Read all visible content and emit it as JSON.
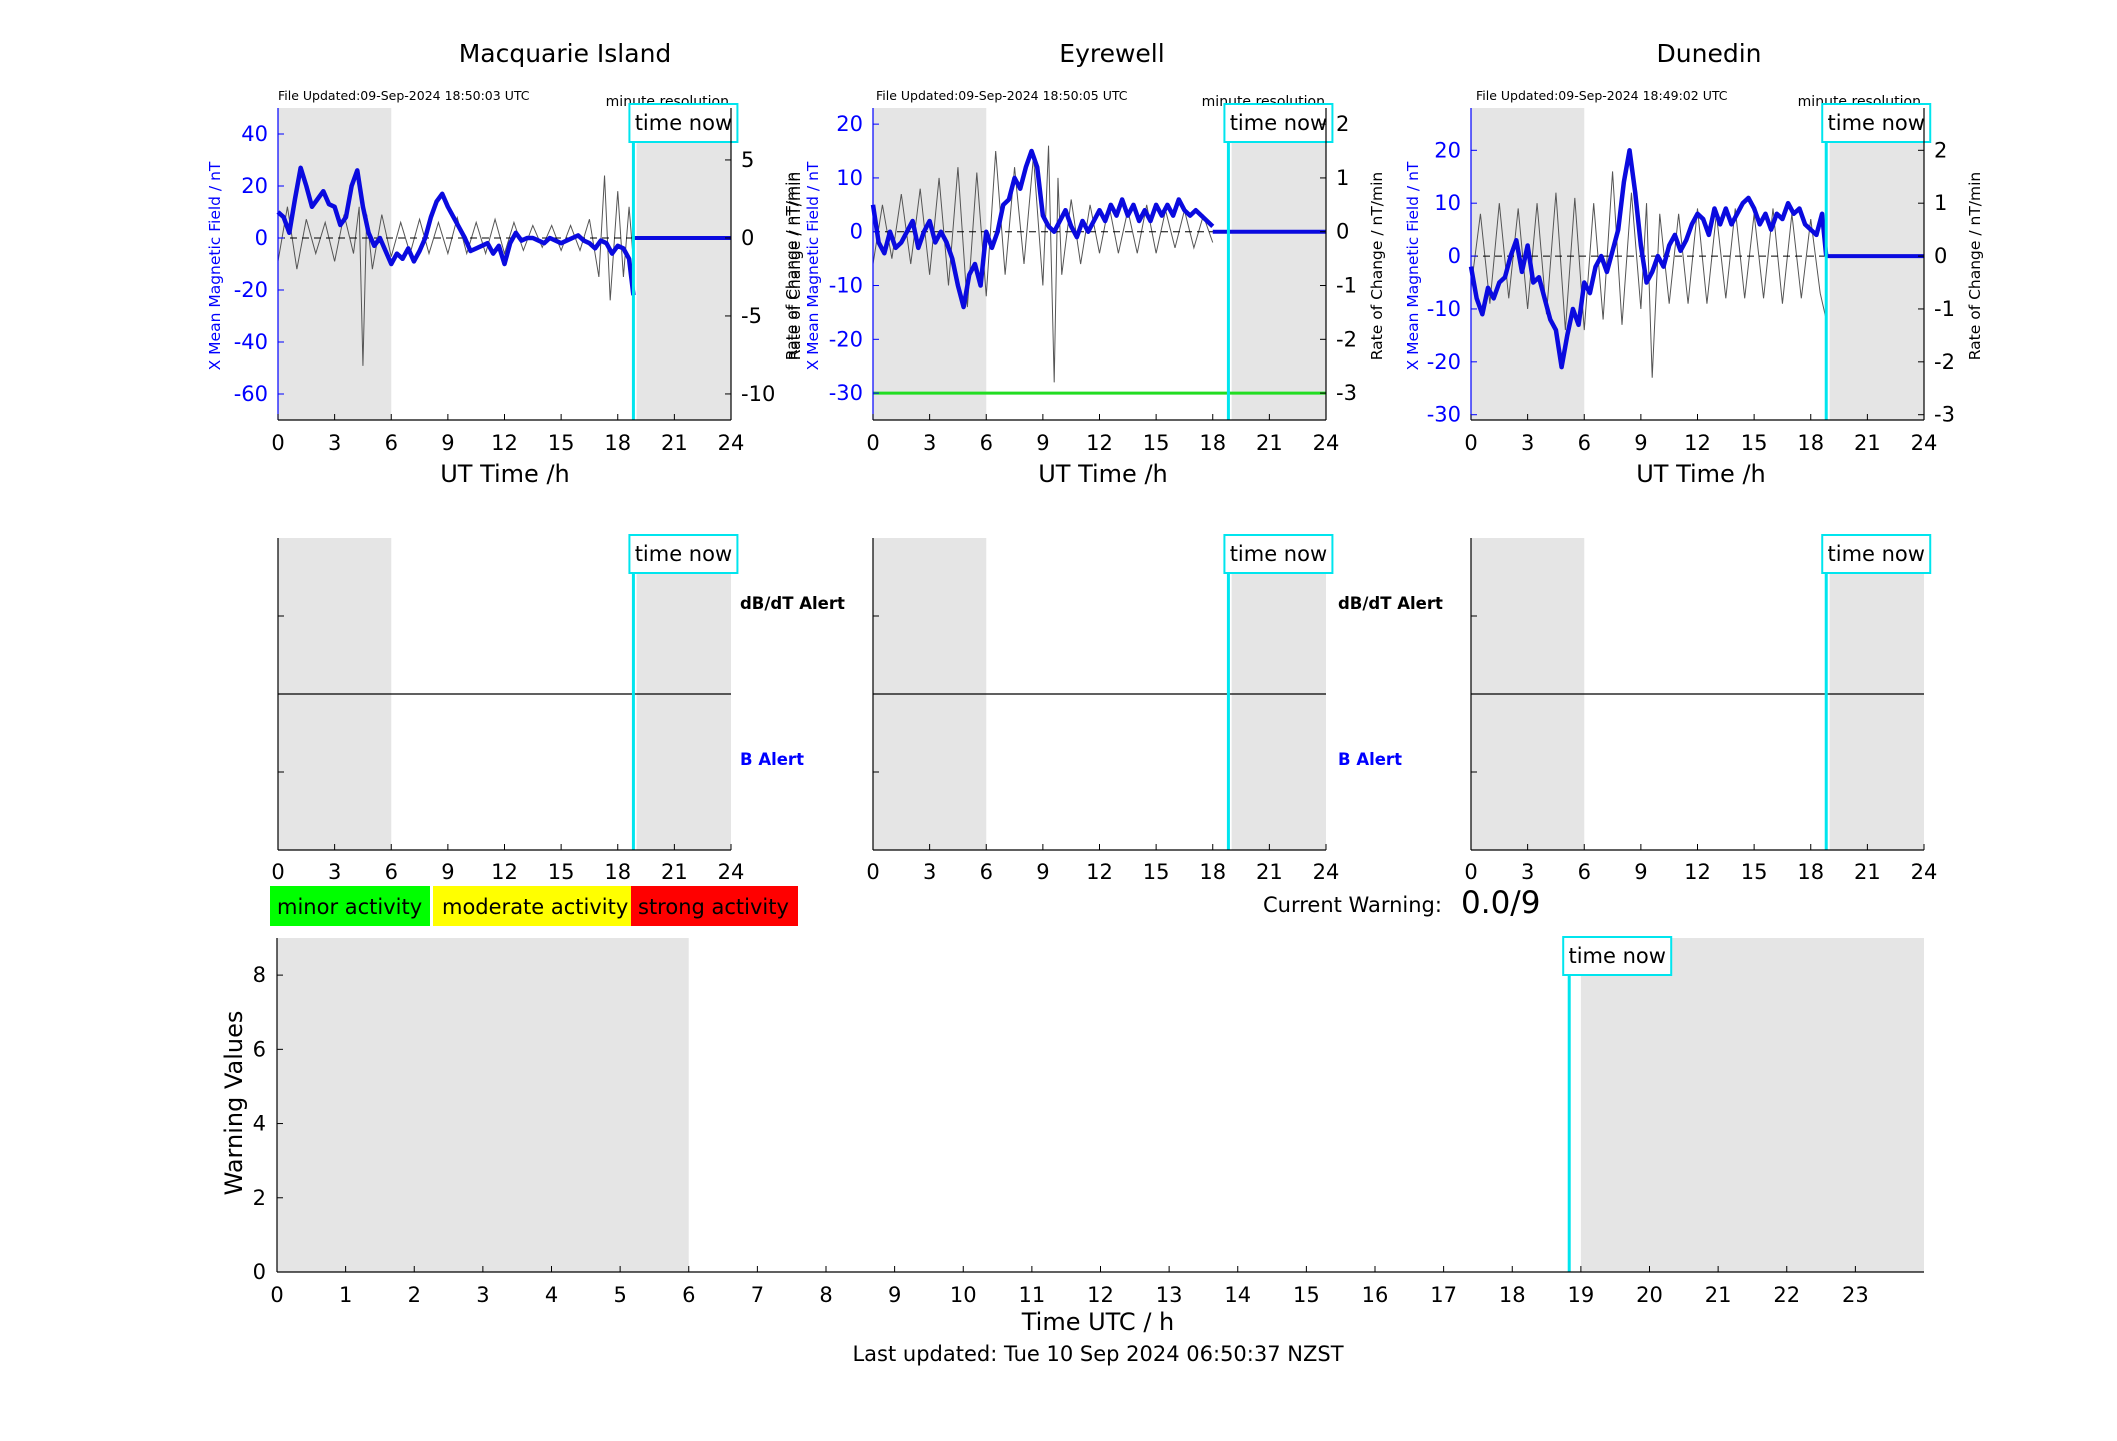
{
  "labels": {
    "time_now": "time now",
    "minute_resolution": "minute resolution",
    "x_axis_ut": "UT Time /h",
    "y_left_label": "X Mean Magnetic Field / nT",
    "y_right_label": "Rate of Change / nT/min",
    "dbdt_alert": "dB/dT Alert",
    "b_alert": "B Alert",
    "current_warning_label": "Current Warning:",
    "current_warning_value": "0.0/9",
    "legend_minor": "minor activity",
    "legend_moderate": "moderate activity",
    "legend_strong": "strong activity",
    "warning_ylabel": "Warning Values",
    "warning_xlabel": "Time UTC / h",
    "last_updated": "Last updated: Tue 10 Sep 2024 06:50:37 NZST"
  },
  "colors": {
    "field_line": "#0a0adf",
    "rate_line": "#555555",
    "time_now": "#00e5ee",
    "shading": "#e5e5e5",
    "threshold": "#22dd22",
    "minor": "#00ff00",
    "moderate": "#ffff00",
    "strong": "#ff0000",
    "b_alert_text": "#0000ff"
  },
  "chart_data": [
    {
      "type": "line",
      "title": "Macquarie Island",
      "file_updated": "File Updated:09-Sep-2024 18:50:03 UTC",
      "xlabel": "UT Time /h",
      "ylabel_left": "X Mean Magnetic Field / nT",
      "ylabel_right": "Rate of Change / nT/min",
      "xlim": [
        0,
        24
      ],
      "x_ticks": [
        0,
        3,
        6,
        9,
        12,
        15,
        18,
        21,
        24
      ],
      "ylim_left": [
        -70,
        50
      ],
      "y_ticks_left": [
        -60,
        -40,
        -20,
        0,
        20,
        40
      ],
      "ylim_right": [
        -11.67,
        8.33
      ],
      "y_ticks_right": [
        -10,
        -5,
        0,
        5
      ],
      "shaded_x": [
        [
          0,
          6
        ],
        [
          19,
          24
        ]
      ],
      "time_now": 18.83,
      "series": [
        {
          "name": "X Mean Magnetic Field",
          "x": [
            0,
            0.3,
            0.6,
            0.9,
            1.2,
            1.5,
            1.8,
            2.1,
            2.4,
            2.7,
            3.0,
            3.3,
            3.6,
            3.9,
            4.2,
            4.5,
            4.8,
            5.1,
            5.4,
            5.7,
            6.0,
            6.3,
            6.6,
            6.9,
            7.2,
            7.5,
            7.8,
            8.1,
            8.4,
            8.7,
            9.0,
            9.3,
            9.6,
            9.9,
            10.2,
            10.5,
            10.8,
            11.1,
            11.4,
            11.7,
            12.0,
            12.3,
            12.6,
            12.9,
            13.2,
            13.5,
            13.8,
            14.1,
            14.4,
            14.7,
            15.0,
            15.3,
            15.6,
            15.9,
            16.2,
            16.5,
            16.8,
            17.1,
            17.4,
            17.7,
            18.0,
            18.3,
            18.6,
            18.83
          ],
          "y": [
            10,
            8,
            2,
            15,
            27,
            20,
            12,
            15,
            18,
            13,
            12,
            5,
            8,
            20,
            26,
            12,
            2,
            -3,
            0,
            -5,
            -10,
            -6,
            -8,
            -4,
            -9,
            -5,
            0,
            8,
            14,
            17,
            12,
            8,
            4,
            0,
            -5,
            -4,
            -3,
            -2,
            -6,
            -3,
            -10,
            -2,
            2,
            -1,
            0,
            0,
            -1,
            -2,
            0,
            -1,
            -2,
            -1,
            0,
            1,
            -1,
            -2,
            -4,
            -1,
            -2,
            -6,
            -3,
            -4,
            -8,
            -22
          ]
        },
        {
          "name": "X Mean Magnetic Field (projected)",
          "x": [
            18.83,
            24
          ],
          "y": [
            0,
            0
          ]
        },
        {
          "name": "Rate of Change",
          "x": [
            0,
            0.5,
            1,
            1.5,
            2,
            2.5,
            3,
            3.5,
            4,
            4.3,
            4.5,
            4.7,
            5,
            5.5,
            6,
            6.5,
            7,
            7.5,
            8,
            8.5,
            9,
            9.5,
            10,
            10.5,
            11,
            11.5,
            12,
            12.5,
            13,
            13.5,
            14,
            14.5,
            15,
            15.5,
            16,
            16.5,
            17,
            17.3,
            17.6,
            18,
            18.3,
            18.6,
            18.83
          ],
          "y": [
            -1.5,
            2,
            -2,
            1.2,
            -1,
            1,
            -1.5,
            1.5,
            -1,
            2,
            -8.2,
            1.5,
            -2,
            1.5,
            -1.2,
            1,
            -1,
            1.2,
            -1,
            1,
            -1,
            1.3,
            -1,
            1,
            -1,
            1.2,
            -1,
            1,
            -0.8,
            0.8,
            -0.6,
            0.8,
            -0.8,
            0.8,
            -0.8,
            1.2,
            -2.5,
            4,
            -4,
            3,
            -2.5,
            2,
            -1.5
          ]
        }
      ]
    },
    {
      "type": "line",
      "title": "Eyrewell",
      "file_updated": "File Updated:09-Sep-2024 18:50:05 UTC",
      "xlabel": "UT Time /h",
      "ylabel_left": "X Mean Magnetic Field / nT",
      "ylabel_right": "Rate of Change / nT/min",
      "xlim": [
        0,
        24
      ],
      "x_ticks": [
        0,
        3,
        6,
        9,
        12,
        15,
        18,
        21,
        24
      ],
      "ylim_left": [
        -35,
        23
      ],
      "y_ticks_left": [
        -30,
        -20,
        -10,
        0,
        10,
        20
      ],
      "ylim_right": [
        -3.5,
        2.3
      ],
      "y_ticks_right": [
        -3,
        -2,
        -1,
        0,
        1,
        2
      ],
      "shaded_x": [
        [
          0,
          6
        ],
        [
          19,
          24
        ]
      ],
      "time_now": 18.83,
      "threshold_y_right": -3,
      "series": [
        {
          "name": "X Mean Magnetic Field",
          "x": [
            0,
            0.3,
            0.6,
            0.9,
            1.2,
            1.5,
            1.8,
            2.1,
            2.4,
            2.7,
            3.0,
            3.3,
            3.6,
            3.9,
            4.2,
            4.5,
            4.8,
            5.1,
            5.4,
            5.7,
            6.0,
            6.3,
            6.6,
            6.9,
            7.2,
            7.5,
            7.8,
            8.1,
            8.4,
            8.7,
            9.0,
            9.3,
            9.6,
            9.9,
            10.2,
            10.5,
            10.8,
            11.1,
            11.4,
            11.7,
            12.0,
            12.3,
            12.6,
            12.9,
            13.2,
            13.5,
            13.8,
            14.1,
            14.4,
            14.7,
            15.0,
            15.3,
            15.6,
            15.9,
            16.2,
            16.5,
            16.8,
            17.1,
            17.4,
            17.7,
            18.0
          ],
          "y": [
            5,
            -2,
            -4,
            0,
            -3,
            -2,
            0,
            2,
            -3,
            0,
            2,
            -2,
            0,
            -2,
            -5,
            -10,
            -14,
            -8,
            -6,
            -10,
            0,
            -3,
            0,
            5,
            6,
            10,
            8,
            12,
            15,
            12,
            3,
            1,
            0,
            2,
            4,
            1,
            -1,
            2,
            0,
            2,
            4,
            2,
            5,
            3,
            6,
            3,
            5,
            2,
            4,
            2,
            5,
            3,
            5,
            3,
            6,
            4,
            3,
            4,
            3,
            2,
            1
          ]
        },
        {
          "name": "X Mean Magnetic Field (projected)",
          "x": [
            18.0,
            24
          ],
          "y": [
            0,
            0
          ]
        },
        {
          "name": "Rate of Change",
          "x": [
            0,
            0.5,
            1,
            1.5,
            2,
            2.5,
            3,
            3.5,
            4,
            4.5,
            5,
            5.5,
            6,
            6.5,
            7,
            7.5,
            8,
            8.5,
            9,
            9.3,
            9.6,
            9.8,
            10,
            10.5,
            11,
            11.5,
            12,
            12.5,
            13,
            13.5,
            14,
            14.5,
            15,
            15.5,
            16,
            16.5,
            17,
            17.5,
            18
          ],
          "y": [
            -0.6,
            0.5,
            -0.5,
            0.7,
            -0.6,
            0.8,
            -0.8,
            1,
            -1,
            1.2,
            -1.4,
            1.1,
            -1.2,
            1.5,
            -0.8,
            1.2,
            -0.6,
            1.4,
            -1,
            1.6,
            -2.8,
            1,
            -0.8,
            0.6,
            -0.6,
            0.5,
            -0.4,
            0.5,
            -0.4,
            0.4,
            -0.4,
            0.5,
            -0.4,
            0.4,
            -0.3,
            0.4,
            -0.3,
            0.3,
            -0.2
          ]
        }
      ]
    },
    {
      "type": "line",
      "title": "Dunedin",
      "file_updated": "File Updated:09-Sep-2024 18:49:02 UTC",
      "xlabel": "UT Time /h",
      "ylabel_left": "X Mean Magnetic Field / nT",
      "ylabel_right": "Rate of Change / nT/min",
      "xlim": [
        0,
        24
      ],
      "x_ticks": [
        0,
        3,
        6,
        9,
        12,
        15,
        18,
        21,
        24
      ],
      "ylim_left": [
        -31,
        28
      ],
      "y_ticks_left": [
        -30,
        -20,
        -10,
        0,
        10,
        20
      ],
      "ylim_right": [
        -3.1,
        2.8
      ],
      "y_ticks_right": [
        -3,
        -2,
        -1,
        0,
        1,
        2
      ],
      "shaded_x": [
        [
          0,
          6
        ],
        [
          19,
          24
        ]
      ],
      "time_now": 18.82,
      "series": [
        {
          "name": "X Mean Magnetic Field",
          "x": [
            0,
            0.3,
            0.6,
            0.9,
            1.2,
            1.5,
            1.8,
            2.1,
            2.4,
            2.7,
            3.0,
            3.3,
            3.6,
            3.9,
            4.2,
            4.5,
            4.8,
            5.1,
            5.4,
            5.7,
            6.0,
            6.3,
            6.6,
            6.9,
            7.2,
            7.5,
            7.8,
            8.1,
            8.4,
            8.7,
            9.0,
            9.3,
            9.6,
            9.9,
            10.2,
            10.5,
            10.8,
            11.1,
            11.4,
            11.7,
            12.0,
            12.3,
            12.6,
            12.9,
            13.2,
            13.5,
            13.8,
            14.1,
            14.4,
            14.7,
            15.0,
            15.3,
            15.6,
            15.9,
            16.2,
            16.5,
            16.8,
            17.1,
            17.4,
            17.7,
            18.0,
            18.3,
            18.6,
            18.82
          ],
          "y": [
            -2,
            -8,
            -11,
            -6,
            -8,
            -5,
            -4,
            0,
            3,
            -3,
            2,
            -5,
            -4,
            -8,
            -12,
            -14,
            -21,
            -15,
            -10,
            -13,
            -5,
            -7,
            -2,
            0,
            -3,
            1,
            5,
            14,
            20,
            12,
            2,
            -5,
            -3,
            0,
            -2,
            2,
            4,
            1,
            3,
            6,
            8,
            7,
            4,
            9,
            6,
            9,
            6,
            8,
            10,
            11,
            9,
            6,
            8,
            5,
            8,
            7,
            10,
            8,
            9,
            6,
            5,
            4,
            8,
            0
          ]
        },
        {
          "name": "X Mean Magnetic Field (projected)",
          "x": [
            18.82,
            24
          ],
          "y": [
            0,
            0
          ]
        },
        {
          "name": "Rate of Change",
          "x": [
            0,
            0.5,
            1,
            1.5,
            2,
            2.5,
            3,
            3.5,
            4,
            4.5,
            5,
            5.5,
            6,
            6.5,
            7,
            7.5,
            8,
            8.5,
            9,
            9.3,
            9.6,
            10,
            10.5,
            11,
            11.5,
            12,
            12.5,
            13,
            13.5,
            14,
            14.5,
            15,
            15.5,
            16,
            16.5,
            17,
            17.5,
            18,
            18.5,
            18.82
          ],
          "y": [
            -0.6,
            0.8,
            -0.9,
            1,
            -0.8,
            0.9,
            -1,
            1,
            -1.1,
            1.2,
            -1.4,
            1.1,
            -1.4,
            1,
            -1.2,
            1.6,
            -1.3,
            1.2,
            -1,
            1,
            -2.3,
            0.8,
            -0.9,
            0.8,
            -0.9,
            0.9,
            -0.9,
            0.8,
            -0.8,
            0.9,
            -0.8,
            0.8,
            -0.8,
            0.9,
            -0.9,
            0.8,
            -0.8,
            0.7,
            -0.7,
            -1.2
          ]
        }
      ]
    },
    {
      "type": "line",
      "title": "",
      "xlabel": "Time UTC / h",
      "ylabel": "Warning Values",
      "xlim": [
        0,
        24
      ],
      "x_ticks": [
        0,
        1,
        2,
        3,
        4,
        5,
        6,
        7,
        8,
        9,
        10,
        11,
        12,
        13,
        14,
        15,
        16,
        17,
        18,
        19,
        20,
        21,
        22,
        23
      ],
      "ylim": [
        0,
        9
      ],
      "y_ticks": [
        0,
        2,
        4,
        6,
        8
      ],
      "shaded_x": [
        [
          0,
          6
        ],
        [
          19,
          24
        ]
      ],
      "time_now": 18.83,
      "current_warning": 0.0,
      "series": []
    }
  ]
}
